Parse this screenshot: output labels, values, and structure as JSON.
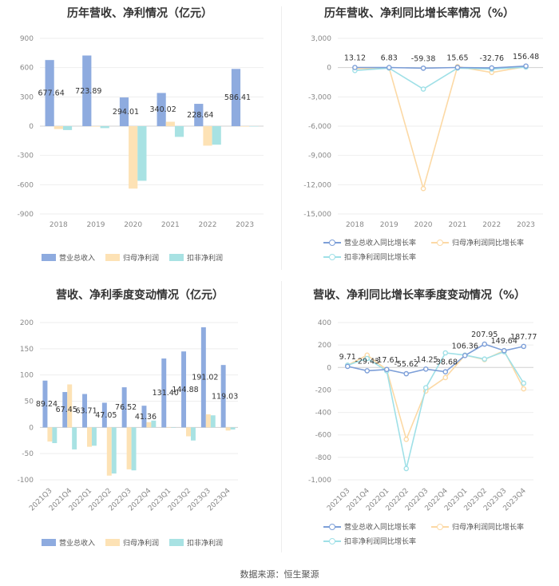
{
  "footer": "数据来源：恒生聚源",
  "chart_data": [
    {
      "type": "bar",
      "title": "历年营收、净利情况（亿元）",
      "categories": [
        "2018",
        "2019",
        "2020",
        "2021",
        "2022",
        "2023"
      ],
      "ylim": [
        -900,
        900
      ],
      "yticks": [
        900,
        600,
        300,
        0,
        -300,
        -600,
        -900
      ],
      "series": [
        {
          "name": "营业总收入",
          "color": "#8eabdf",
          "values": [
            677.64,
            723.89,
            294.01,
            340.02,
            228.64,
            586.41
          ],
          "labels": [
            "677.64",
            "723.89",
            "294.01",
            "340.02",
            "228.64",
            "586.41"
          ]
        },
        {
          "name": "归母净利润",
          "color": "#fde2b5",
          "values": [
            -30,
            -5,
            -640,
            45,
            -200,
            -5
          ]
        },
        {
          "name": "扣非净利润",
          "color": "#a8e2e3",
          "values": [
            -40,
            -20,
            -560,
            -110,
            -190,
            0
          ]
        }
      ],
      "legend_position": "bottom"
    },
    {
      "type": "line",
      "title": "历年营收、净利同比增长率情况（%）",
      "categories": [
        "2018",
        "2019",
        "2020",
        "2021",
        "2022",
        "2023"
      ],
      "ylim": [
        -15000,
        3000
      ],
      "yticks": [
        3000,
        0,
        -3000,
        -6000,
        -9000,
        -12000,
        -15000
      ],
      "ytick_labels": [
        "3,000",
        "0",
        "-3,000",
        "-6,000",
        "-9,000",
        "-12,000",
        "-15,000"
      ],
      "series": [
        {
          "name": "营业总收入同比增长率",
          "color": "#7d9fd8",
          "values": [
            13.12,
            6.83,
            -59.38,
            15.65,
            -32.76,
            156.48
          ],
          "labels": [
            "13.12",
            "6.83",
            "-59.38",
            "15.65",
            "-32.76",
            "156.48"
          ]
        },
        {
          "name": "归母净利润同比增长率",
          "color": "#fcd9a5",
          "values": [
            -100,
            -50,
            -12400,
            100,
            -500,
            100
          ]
        },
        {
          "name": "扣非净利润同比增长率",
          "color": "#9fe0e7",
          "values": [
            -300,
            -50,
            -2200,
            -50,
            -150,
            50
          ]
        }
      ],
      "legend_position": "bottom"
    },
    {
      "type": "bar",
      "title": "营收、净利季度变动情况（亿元）",
      "categories": [
        "2021Q3",
        "2021Q4",
        "2022Q1",
        "2022Q2",
        "2022Q3",
        "2022Q4",
        "2023Q1",
        "2023Q2",
        "2023Q3",
        "2023Q4"
      ],
      "ylim": [
        -100,
        200
      ],
      "yticks": [
        200,
        150,
        100,
        50,
        0,
        -50,
        -100
      ],
      "series": [
        {
          "name": "营业总收入",
          "color": "#8eabdf",
          "values": [
            89.24,
            67.45,
            63.71,
            47.05,
            76.52,
            41.36,
            131.4,
            144.88,
            191.02,
            119.03
          ],
          "labels": [
            "89.24",
            "67.45",
            "63.71",
            "47.05",
            "76.52",
            "41.36",
            "131.40",
            "144.88",
            "191.02",
            "119.03"
          ]
        },
        {
          "name": "归母净利润",
          "color": "#fde2b5",
          "values": [
            -27,
            82,
            -37,
            -92,
            -80,
            10,
            0,
            -17,
            25,
            -6
          ]
        },
        {
          "name": "扣非净利润",
          "color": "#a8e2e3",
          "values": [
            -30,
            -42,
            -35,
            -88,
            -82,
            13,
            0,
            -25,
            23,
            -4
          ]
        }
      ],
      "legend_position": "bottom"
    },
    {
      "type": "line",
      "title": "营收、净利同比增长率季度变动情况（%）",
      "categories": [
        "2021Q3",
        "2021Q4",
        "2022Q1",
        "2022Q2",
        "2022Q3",
        "2022Q4",
        "2023Q1",
        "2023Q2",
        "2023Q3",
        "2023Q4"
      ],
      "ylim": [
        -1000,
        400
      ],
      "yticks": [
        400,
        200,
        0,
        -200,
        -400,
        -600,
        -800,
        -1000
      ],
      "ytick_labels": [
        "400",
        "200",
        "0",
        "-200",
        "-400",
        "-600",
        "-800",
        "-1,000"
      ],
      "series": [
        {
          "name": "营业总收入同比增长率",
          "color": "#7d9fd8",
          "values": [
            9.71,
            -29.43,
            -17.61,
            -55.62,
            -14.25,
            -38.68,
            106.36,
            207.95,
            149.64,
            187.77
          ],
          "labels": [
            "9.71",
            "-29.43",
            "-17.61",
            "-55.62",
            "-14.25",
            "-38.68",
            "106.36",
            "207.95",
            "149.64",
            "187.77"
          ]
        },
        {
          "name": "归母净利润同比增长率",
          "color": "#fcd9a5",
          "values": [
            20,
            110,
            -20,
            -640,
            -210,
            -90,
            110,
            70,
            150,
            -190
          ]
        },
        {
          "name": "扣非净利润同比增长率",
          "color": "#9fe0e7",
          "values": [
            20,
            80,
            -30,
            -900,
            -180,
            130,
            110,
            75,
            140,
            -140
          ]
        }
      ],
      "legend_position": "bottom"
    }
  ]
}
